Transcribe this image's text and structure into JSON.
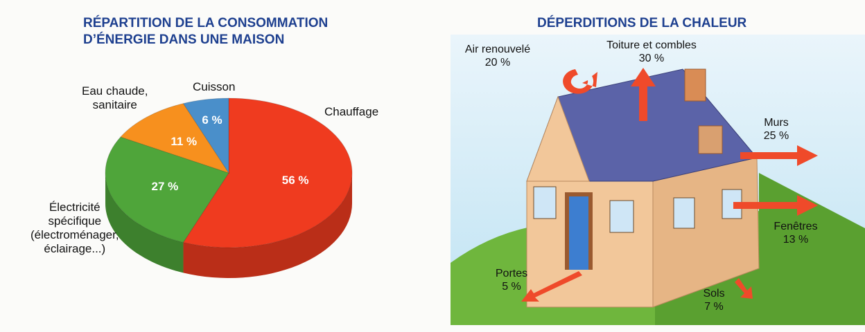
{
  "chart_data": {
    "type": "pie",
    "title": "RÉPARTITION DE LA CONSOMMATION\nD’ÉNERGIE DANS UNE MAISON",
    "categories": [
      "Chauffage",
      "Électricité\nspécifique\n(électroménager,\néclairage...)",
      "Eau chaude,\nsanitaire",
      "Cuisson"
    ],
    "values": [
      56,
      27,
      11,
      6
    ],
    "value_labels": [
      "56 %",
      "27 %",
      "11 %",
      "6 %"
    ],
    "colors": [
      "#ef3b1f",
      "#4fa53a",
      "#f7901e",
      "#4a8fca"
    ]
  },
  "heat_loss": {
    "title": "DÉPERDITIONS DE LA CHALEUR",
    "items": [
      {
        "label": "Air renouvelé",
        "value": "20 %"
      },
      {
        "label": "Toiture et combles",
        "value": "30 %"
      },
      {
        "label": "Murs",
        "value": "25 %"
      },
      {
        "label": "Fenêtres",
        "value": "13 %"
      },
      {
        "label": "Portes",
        "value": "5 %"
      },
      {
        "label": "Sols",
        "value": "7 %"
      }
    ]
  }
}
